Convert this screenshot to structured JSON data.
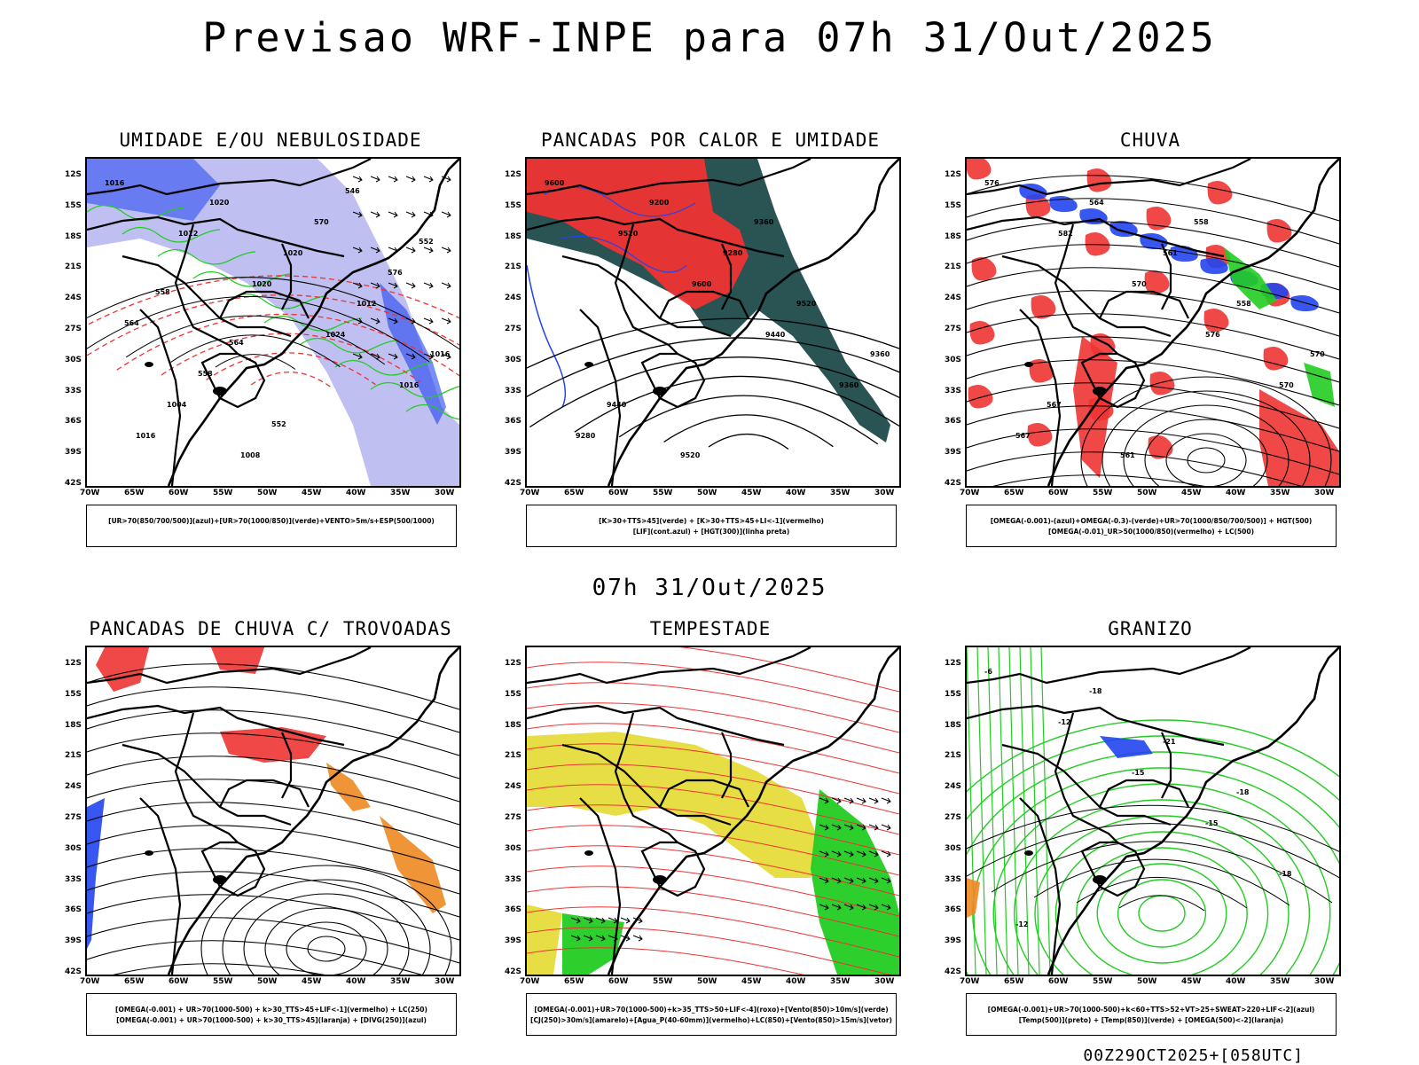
{
  "header": {
    "title": "Previsao WRF-INPE  para 07h 31/Out/2025",
    "mid_date": "07h 31/Out/2025",
    "footer": "00Z29OCT2025+[058UTC]"
  },
  "axes": {
    "lat_labels": [
      "12S",
      "15S",
      "18S",
      "21S",
      "24S",
      "27S",
      "30S",
      "33S",
      "36S",
      "39S",
      "42S"
    ],
    "lon_labels": [
      "70W",
      "65W",
      "60W",
      "55W",
      "50W",
      "45W",
      "40W",
      "35W",
      "30W"
    ]
  },
  "colors": {
    "green": "#22cc22",
    "blue": "#2244ee",
    "red": "#ee3333",
    "dark_teal": "#1f4a4a",
    "yellow": "#e6dc3c",
    "orange": "#ee8822",
    "lavender": "#b4b4ee"
  },
  "panels": [
    {
      "title": "UMIDADE E/OU NEBULOSIDADE",
      "legend": [
        "[UR>70(850/700/500)](azul)+[UR>70(1000/850)](verde)+VENTO>5m/s+ESP(500/1000)"
      ],
      "contour_labels": [
        "1016",
        "1012",
        "1020",
        "1024",
        "1016",
        "1016",
        "1020",
        "1020",
        "1012",
        "1016",
        "1004",
        "1008",
        "570",
        "576",
        "564",
        "558",
        "552",
        "546",
        "552",
        "558",
        "564"
      ]
    },
    {
      "title": "PANCADAS POR CALOR E UMIDADE",
      "legend": [
        "[K>30+TTS>45](verde) + [K>30+TTS>45+LI<-1](vermelho)",
        "[LIF](cont.azul) + [HGT(300)](linha preta)"
      ],
      "contour_labels": [
        "9600",
        "9520",
        "9600",
        "9440",
        "9360",
        "9280",
        "9200",
        "9280",
        "9520",
        "9360",
        "9440",
        "9520",
        "9360"
      ]
    },
    {
      "title": "CHUVA",
      "legend": [
        "[OMEGA(-0.001)-(azul)+OMEGA(-0.3)-(verde)+UR>70(1000/850/700/500)] + HGT(500)",
        "[OMEGA(-0.01)_UR>50(1000/850)(vermelho) + LC(500)"
      ],
      "contour_labels": [
        "576",
        "582",
        "570",
        "576",
        "570",
        "567",
        "564",
        "561",
        "558",
        "570",
        "567",
        "561",
        "558"
      ]
    },
    {
      "title": "PANCADAS DE CHUVA C/ TROVOADAS",
      "legend": [
        "[OMEGA(-0.001) + UR>70(1000-500) + k>30_TTS>45+LIF<-1](vermelho) + LC(250)",
        "[OMEGA(-0.001) + UR>70(1000-500) + k>30_TTS>45](laranja) + [DIVG(250)](azul)"
      ],
      "contour_labels": []
    },
    {
      "title": "TEMPESTADE",
      "legend": [
        "[OMEGA(-0.001)+UR>70(1000-500)+k>35_TTS>50+LIF<-4](roxo)+[Vento(850)>10m/s](verde)",
        "[CJ(250)>30m/s](amarelo)+[Agua_P(40-60mm)](vermelho)+LC(850)+[Vento(850)>15m/s](vetor)"
      ],
      "contour_labels": []
    },
    {
      "title": "GRANIZO",
      "legend": [
        "[OMEGA(-0.001)+UR>70(1000-500)+k<60+TTS>52+VT>25+SWEAT>220+LIF<-2](azul)",
        "[Temp(500)](preto) + [Temp(850)](verde) + [OMEGA(500)<-2](laranja)"
      ],
      "contour_labels": [
        "-6",
        "-12",
        "-15",
        "-15",
        "-18",
        "-12",
        "-18",
        "-21",
        "-18"
      ]
    }
  ]
}
